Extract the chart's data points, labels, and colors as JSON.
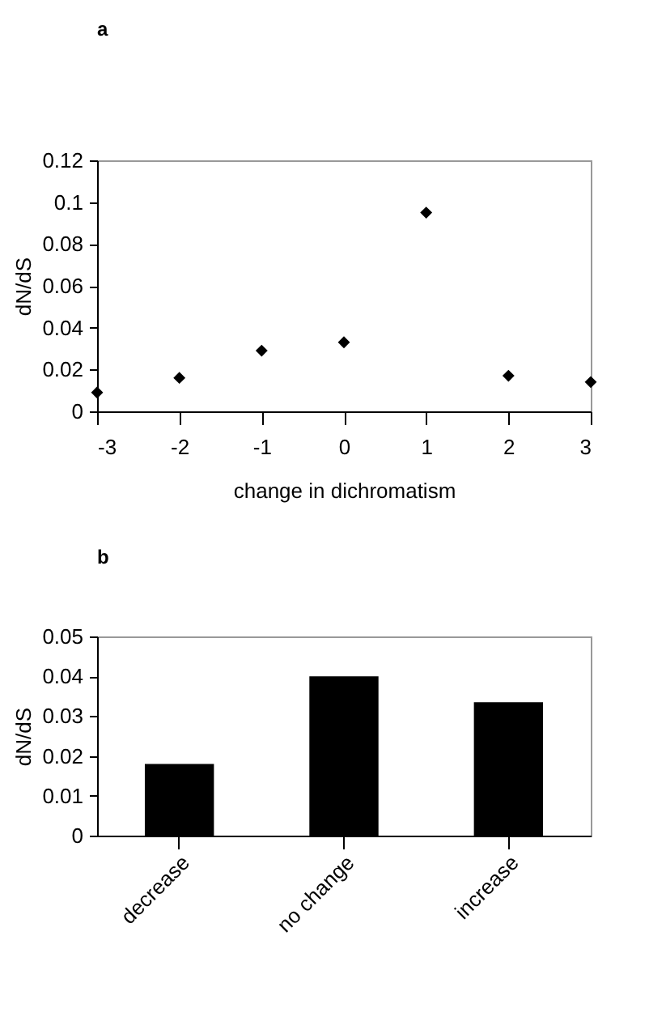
{
  "chart_data": [
    {
      "type": "scatter",
      "title": "a",
      "xlabel": "change in dichromatism",
      "ylabel": "dN/dS",
      "x": [
        -3,
        -2,
        -1,
        0,
        1,
        2,
        3
      ],
      "series": [
        {
          "color": "#000000",
          "values": [
            0.009,
            0.016,
            0.029,
            0.033,
            0.095,
            0.017,
            0.014
          ]
        }
      ],
      "xlim": [
        -3,
        3
      ],
      "xticks": [
        -3,
        -2,
        -1,
        0,
        1,
        2,
        3
      ],
      "ylim": [
        0,
        0.12
      ],
      "yticks": [
        0,
        0.02,
        0.04,
        0.06,
        0.08,
        0.1,
        0.12
      ],
      "marker": "diamond",
      "grid": false,
      "legend": false
    },
    {
      "type": "bar",
      "title": "b",
      "ylabel": "dN/dS",
      "categories": [
        "decrease",
        "no change",
        "increase"
      ],
      "series": [
        {
          "color": "#000000",
          "values": [
            0.018,
            0.04,
            0.0335
          ]
        }
      ],
      "ylim": [
        0,
        0.05
      ],
      "yticks": [
        0,
        0.01,
        0.02,
        0.03,
        0.04,
        0.05
      ],
      "grid": false,
      "legend": false
    }
  ]
}
